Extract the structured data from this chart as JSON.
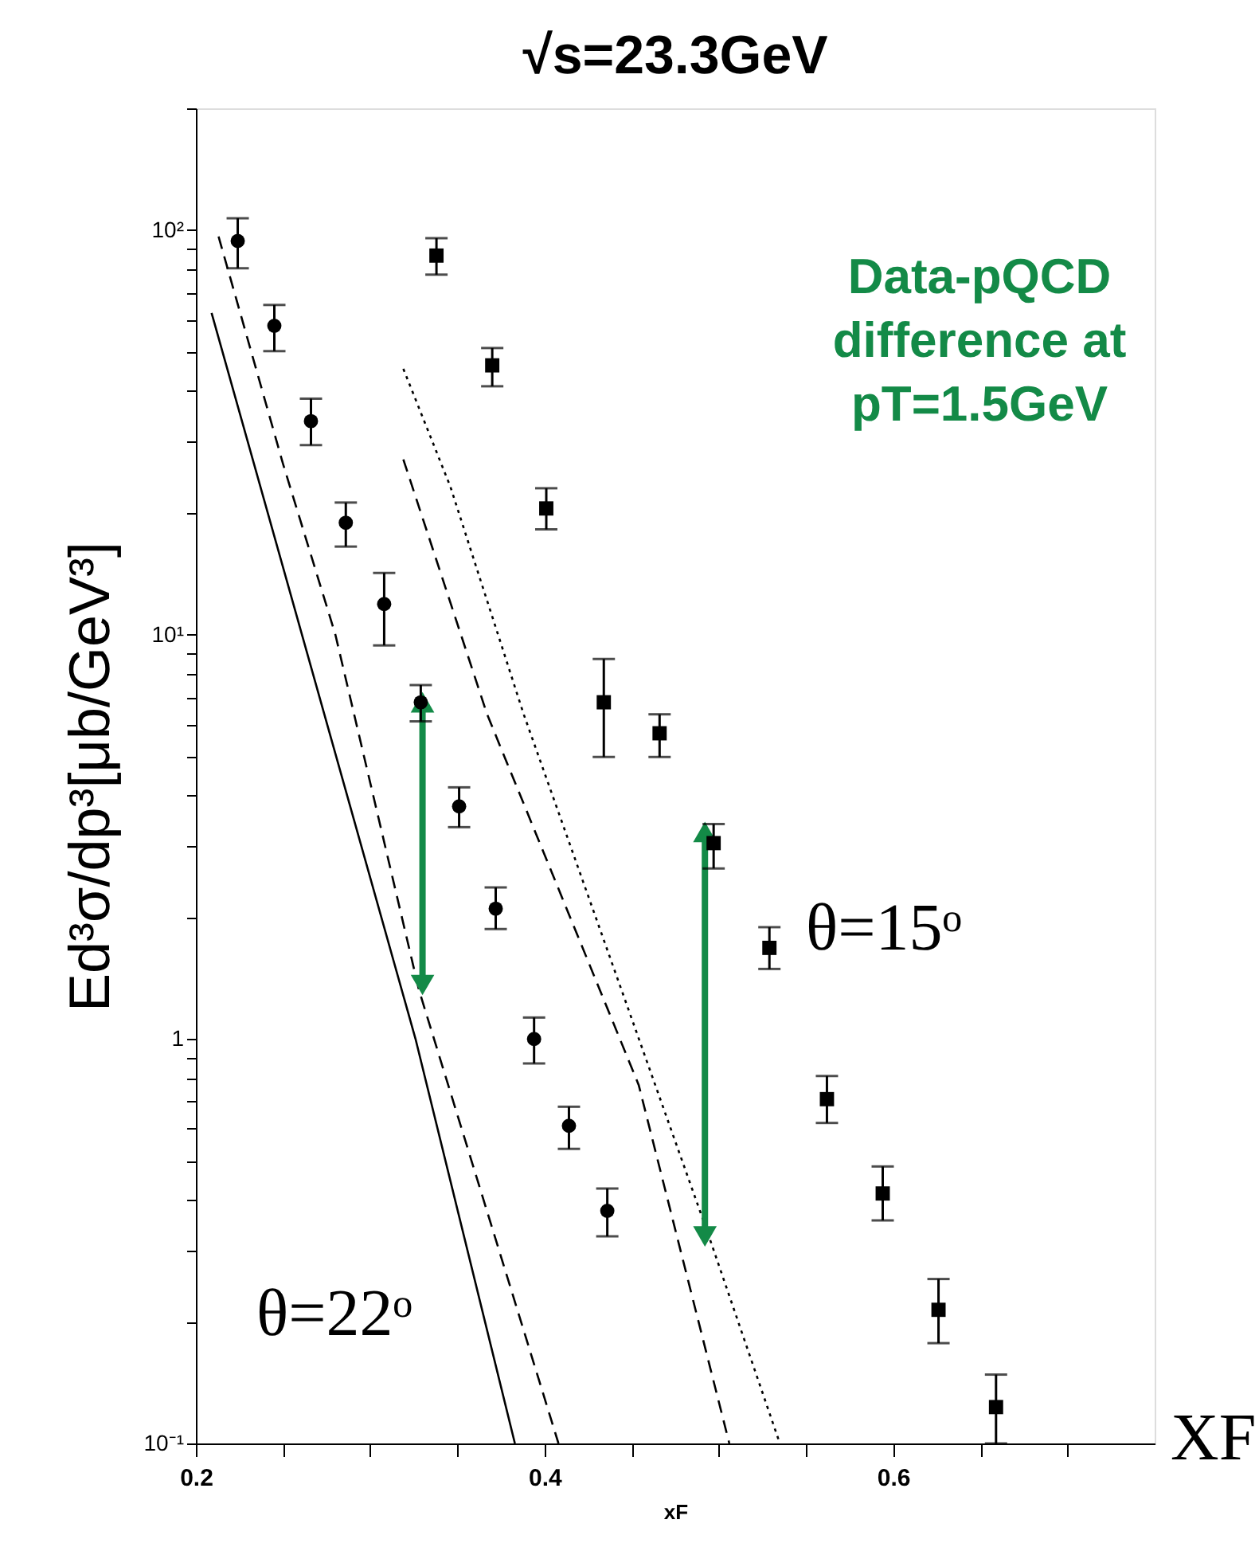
{
  "chart_data": {
    "type": "scatter",
    "title": "√s=23.3GeV",
    "xlabel": "xF",
    "ylabel": "Ed³σ/dp³[μb/GeV³]",
    "xlim": [
      0.2,
      0.75
    ],
    "xticks": [
      0.2,
      {
        "value": 0.25,
        "label": null
      },
      {
        "value": 0.3,
        "label": null
      },
      {
        "value": 0.35,
        "label": null
      },
      0.4,
      {
        "value": 0.45,
        "label": null
      },
      {
        "value": 0.5,
        "label": null
      },
      {
        "value": 0.55,
        "label": null
      },
      0.6,
      {
        "value": 0.65,
        "label": null
      },
      {
        "value": 0.7,
        "label": null
      }
    ],
    "ylim": [
      0.1,
      200
    ],
    "log": true,
    "grid": false,
    "yticks": [
      {
        "value": 0.1,
        "label": "10⁻¹"
      },
      {
        "value": 0.2,
        "label": null
      },
      {
        "value": 0.3,
        "label": null
      },
      {
        "value": 0.4,
        "label": null
      },
      {
        "value": 0.5,
        "label": null
      },
      {
        "value": 0.6,
        "label": null
      },
      {
        "value": 0.7,
        "label": null
      },
      {
        "value": 0.8,
        "label": null
      },
      {
        "value": 0.9,
        "label": null
      },
      1,
      {
        "value": 2,
        "label": null
      },
      {
        "value": 3,
        "label": null
      },
      {
        "value": 4,
        "label": null
      },
      {
        "value": 5,
        "label": null
      },
      {
        "value": 6,
        "label": null
      },
      {
        "value": 7,
        "label": null
      },
      {
        "value": 8,
        "label": null
      },
      {
        "value": 9,
        "label": null
      },
      {
        "value": 10,
        "label": "10¹"
      },
      {
        "value": 20,
        "label": null
      },
      {
        "value": 30,
        "label": null
      },
      {
        "value": 40,
        "label": null
      },
      {
        "value": 50,
        "label": null
      },
      {
        "value": 60,
        "label": null
      },
      {
        "value": 70,
        "label": null
      },
      {
        "value": 80,
        "label": null
      },
      {
        "value": 90,
        "label": null
      },
      {
        "value": 100,
        "label": "10²"
      },
      {
        "value": 200,
        "label": null
      }
    ],
    "series": [
      {
        "type": "line",
        "color": "#000000",
        "line_style": "solid",
        "x": [
          0.209,
          0.326,
          0.383
        ],
        "values": [
          62.4,
          1.0,
          0.1
        ]
      },
      {
        "type": "line",
        "color": "#000000",
        "line_style": "dashed",
        "x": [
          0.213,
          0.25,
          0.28,
          0.328,
          0.408
        ],
        "values": [
          96.4,
          26.4,
          10,
          1.32,
          0.1
        ]
      },
      {
        "type": "line",
        "color": "#000000",
        "line_style": "dashed",
        "x": [
          0.319,
          0.367,
          0.454,
          0.506
        ],
        "values": [
          27.1,
          6.36,
          0.77,
          0.1
        ]
      },
      {
        "type": "line",
        "color": "#000000",
        "line_style": "dotted",
        "x": [
          0.319,
          0.346,
          0.388,
          0.494,
          0.535
        ],
        "values": [
          45.4,
          23.2,
          6.36,
          0.328,
          0.1
        ]
      },
      {
        "type": "line",
        "color": "#138a47",
        "marker": "triangle",
        "line_style": "solid",
        "x": [
          0.33,
          0.33
        ],
        "values": [
          6.8,
          1.36
        ]
      },
      {
        "type": "line",
        "color": "#138a47",
        "marker": "triangle",
        "line_style": "solid",
        "x": [
          0.492,
          0.492
        ],
        "values": [
          3.25,
          0.325
        ]
      },
      {
        "color": "#000000",
        "marker": "circle",
        "x": [
          0.224,
          0.245,
          0.266,
          0.286,
          0.308,
          0.329,
          0.351,
          0.372,
          0.394,
          0.414,
          0.436
        ],
        "values": [
          94,
          58,
          33.7,
          18.9,
          11.9,
          6.8,
          3.76,
          2.1,
          1.0,
          0.61,
          0.376
        ],
        "errors": [
          [
            80.5,
            107
          ],
          [
            50.2,
            65.3
          ],
          [
            29.4,
            38.3
          ],
          [
            16.5,
            21.2
          ],
          [
            9.4,
            14.2
          ],
          [
            6.1,
            7.5
          ],
          [
            3.34,
            4.19
          ],
          [
            1.87,
            2.37
          ],
          [
            0.87,
            1.13
          ],
          [
            0.535,
            0.68
          ],
          [
            0.325,
            0.427
          ]
        ]
      },
      {
        "color": "#000000",
        "marker": "square",
        "x": [
          0.338,
          0.37,
          0.401,
          0.434,
          0.466,
          0.497,
          0.529,
          0.562,
          0.594,
          0.626,
          0.659
        ],
        "values": [
          86.5,
          46.3,
          20.5,
          6.8,
          5.7,
          3.05,
          1.68,
          0.71,
          0.415,
          0.214,
          0.123
        ],
        "errors": [
          [
            77.6,
            95.5
          ],
          [
            41.1,
            51.1
          ],
          [
            18.2,
            23.0
          ],
          [
            4.98,
            8.7
          ],
          [
            4.98,
            6.35
          ],
          [
            2.64,
            3.4
          ],
          [
            1.49,
            1.89
          ],
          [
            0.62,
            0.81
          ],
          [
            0.356,
            0.484
          ],
          [
            0.177,
            0.255
          ],
          [
            0.1,
            0.148
          ]
        ]
      }
    ],
    "annotations": [
      "Data-pQCD\ndifference at\npT=1.5GeV",
      "XF",
      "θ=22ᵒ",
      "θ=15ᵒ"
    ]
  }
}
